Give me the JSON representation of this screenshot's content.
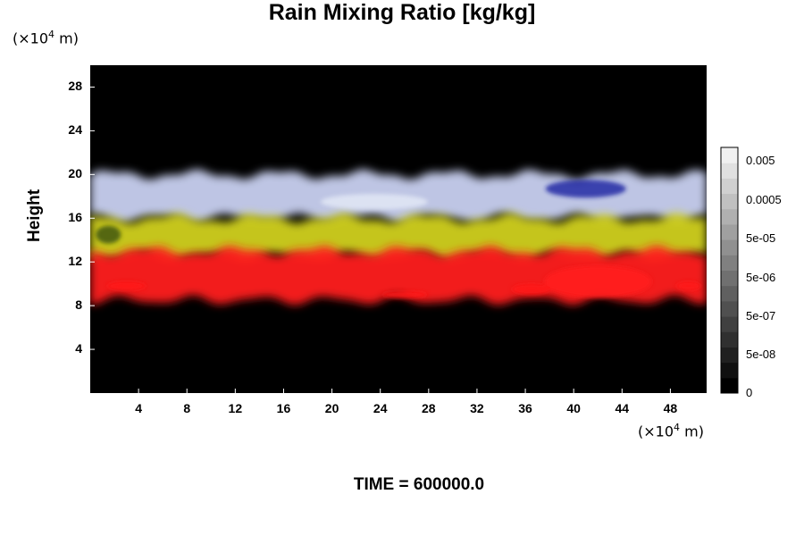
{
  "chart_data": {
    "type": "heatmap",
    "title": "Rain Mixing Ratio [kg/kg]",
    "ylabel": "Height",
    "xlabel": "",
    "y_unit": "(×10",
    "x_unit": "(×10",
    "unit_exponent": "4",
    "unit_suffix": " m)",
    "xlim": [
      0,
      51
    ],
    "ylim": [
      0,
      30
    ],
    "x_ticks": [
      "4",
      "8",
      "12",
      "16",
      "20",
      "24",
      "28",
      "32",
      "36",
      "40",
      "44",
      "48"
    ],
    "y_ticks": [
      "4",
      "8",
      "12",
      "16",
      "20",
      "24",
      "28"
    ],
    "colorbar": {
      "levels": 16,
      "tick_labels": [
        "0",
        "5e-08",
        "5e-07",
        "5e-06",
        "5e-05",
        "0.0005",
        "0.005"
      ],
      "min_color": "#000000",
      "max_color": "#f0f0f0"
    },
    "layers": [
      {
        "name": "cloud top (blue-white)",
        "color": "#c8d0f0",
        "y_range": [
          16,
          20
        ]
      },
      {
        "name": "middle (yellow)",
        "color": "#d0d020",
        "y_range": [
          12.5,
          16
        ]
      },
      {
        "name": "lower (red)",
        "color": "#ff2020",
        "y_range": [
          8.5,
          13
        ]
      }
    ],
    "background_color": "#000000"
  },
  "footer": {
    "time_label": "TIME = 600000.0"
  }
}
